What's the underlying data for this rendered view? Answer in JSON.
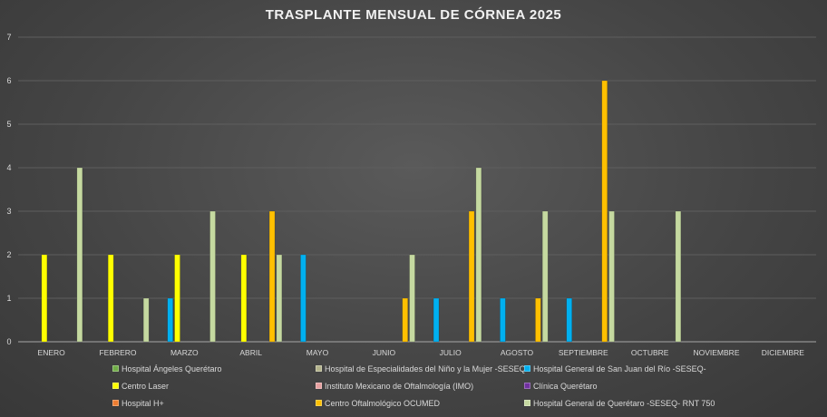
{
  "chart_data": {
    "type": "bar",
    "title": "TRASPLANTE MENSUAL DE CÓRNEA 2025",
    "categories": [
      "ENERO",
      "FEBRERO",
      "MARZO",
      "ABRIL",
      "MAYO",
      "JUNIO",
      "JULIO",
      "AGOSTO",
      "SEPTIEMBRE",
      "OCTUBRE",
      "NOVIEMBRE",
      "DICIEMBRE"
    ],
    "ylim": [
      0,
      7
    ],
    "yticks": [
      "0",
      "1",
      "2",
      "3",
      "4",
      "5",
      "6",
      "7"
    ],
    "grid": true,
    "legend_position": "bottom",
    "series": [
      {
        "name": "Hospital Ángeles Querétaro",
        "color": "#70ad47",
        "values": [
          0,
          0,
          0,
          0,
          0,
          0,
          0,
          0,
          0,
          0,
          0,
          0
        ]
      },
      {
        "name": "Hospital de Especialidades del Niño y la Mujer -SESEQ-",
        "color": "#b4b48c",
        "values": [
          0,
          0,
          0,
          0,
          0,
          0,
          0,
          0,
          0,
          0,
          0,
          0
        ]
      },
      {
        "name": "Hospital General de San Juan del Río -SESEQ-",
        "color": "#00b0f0",
        "values": [
          0,
          0,
          1,
          0,
          2,
          0,
          1,
          1,
          1,
          0,
          0,
          0
        ]
      },
      {
        "name": "Centro Laser",
        "color": "#ffff00",
        "values": [
          2,
          2,
          2,
          2,
          0,
          0,
          0,
          0,
          0,
          0,
          0,
          0
        ]
      },
      {
        "name": "Instituto Mexicano de Oftalmología (IMO)",
        "color": "#e6a0a0",
        "values": [
          0,
          0,
          0,
          0,
          0,
          0,
          0,
          0,
          0,
          0,
          0,
          0
        ]
      },
      {
        "name": "Clínica Querétaro",
        "color": "#7030a0",
        "values": [
          0,
          0,
          0,
          0,
          0,
          0,
          0,
          0,
          0,
          0,
          0,
          0
        ]
      },
      {
        "name": "Hospital H+",
        "color": "#ed7d31",
        "values": [
          0,
          0,
          0,
          0,
          0,
          0,
          0,
          0,
          0,
          0,
          0,
          0
        ]
      },
      {
        "name": "Centro Oftalmológico OCUMED",
        "color": "#ffc000",
        "values": [
          0,
          0,
          0,
          3,
          0,
          1,
          3,
          1,
          6,
          0,
          0,
          0
        ]
      },
      {
        "name": "Hospital General de Querétaro -SESEQ- RNT 750",
        "color": "#c5d9a0",
        "values": [
          4,
          1,
          3,
          2,
          0,
          2,
          4,
          3,
          3,
          3,
          0,
          0
        ]
      }
    ]
  }
}
